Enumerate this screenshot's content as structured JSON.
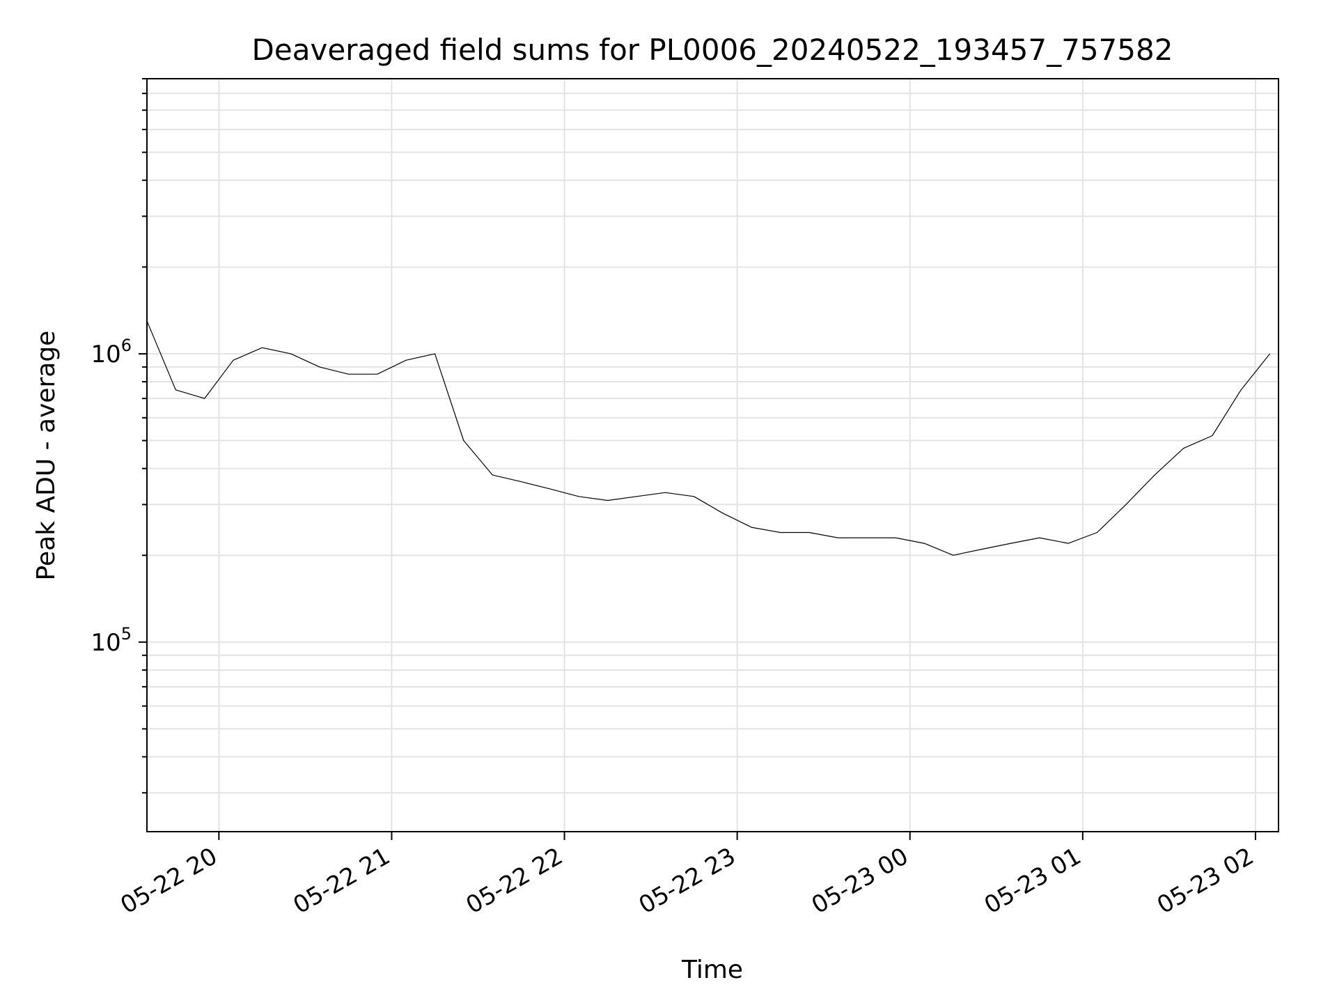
{
  "chart_data": {
    "type": "line",
    "title": "Deaveraged field sums for PL0006_20240522_193457_757582",
    "xlabel": "Time",
    "ylabel": "Peak ADU - average",
    "y_scale": "log",
    "xlim": [
      "05-22 19:35",
      "05-23 02:08"
    ],
    "ylim": [
      22000,
      9000000
    ],
    "grid": true,
    "x_ticks": [
      "05-22 20",
      "05-22 21",
      "05-22 22",
      "05-22 23",
      "05-23 00",
      "05-23 01",
      "05-23 02"
    ],
    "y_ticks": [
      {
        "base": "10",
        "exp": "5",
        "value": 100000
      },
      {
        "base": "10",
        "exp": "6",
        "value": 1000000
      }
    ],
    "series": [
      {
        "color": "#000000",
        "x": [
          "05-22 19:35",
          "05-22 19:45",
          "05-22 19:55",
          "05-22 20:05",
          "05-22 20:15",
          "05-22 20:25",
          "05-22 20:35",
          "05-22 20:45",
          "05-22 20:55",
          "05-22 21:05",
          "05-22 21:15",
          "05-22 21:25",
          "05-22 21:35",
          "05-22 21:45",
          "05-22 21:55",
          "05-22 22:05",
          "05-22 22:15",
          "05-22 22:25",
          "05-22 22:35",
          "05-22 22:45",
          "05-22 22:55",
          "05-22 23:05",
          "05-22 23:15",
          "05-22 23:25",
          "05-22 23:35",
          "05-22 23:45",
          "05-22 23:55",
          "05-23 00:05",
          "05-23 00:15",
          "05-23 00:25",
          "05-23 00:35",
          "05-23 00:45",
          "05-23 00:55",
          "05-23 01:05",
          "05-23 01:15",
          "05-23 01:25",
          "05-23 01:35",
          "05-23 01:45",
          "05-23 01:55",
          "05-23 02:05"
        ],
        "y": [
          1300000,
          750000,
          700000,
          950000,
          1050000,
          1000000,
          900000,
          850000,
          850000,
          950000,
          1000000,
          500000,
          380000,
          360000,
          340000,
          320000,
          310000,
          320000,
          330000,
          320000,
          280000,
          250000,
          240000,
          240000,
          230000,
          230000,
          230000,
          220000,
          200000,
          210000,
          220000,
          230000,
          220000,
          240000,
          300000,
          380000,
          470000,
          520000,
          750000,
          1000000
        ]
      }
    ]
  }
}
